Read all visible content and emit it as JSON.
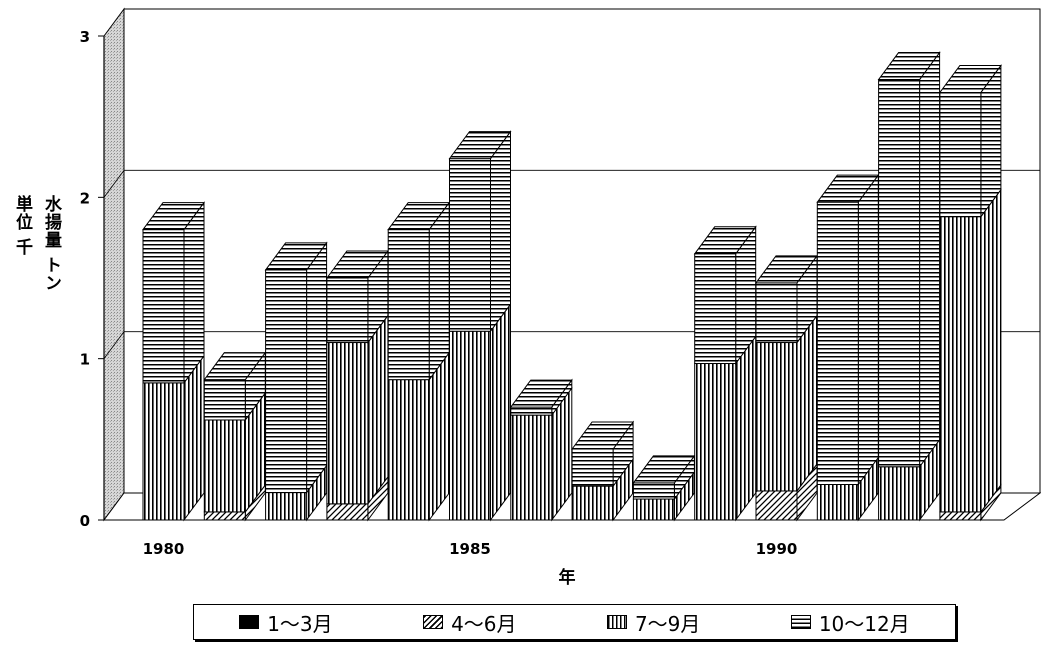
{
  "chart_data": {
    "type": "bar",
    "stacked": true,
    "three_d": true,
    "title": "",
    "xlabel": "年",
    "ylabel_lines": [
      "水揚量 トン",
      "単位 千"
    ],
    "ylim": [
      0,
      3
    ],
    "yticks": [
      "0",
      "1",
      "2",
      "3"
    ],
    "xtick_labels": [
      {
        "year": 1980,
        "label": "1980"
      },
      {
        "year": 1985,
        "label": "1985"
      },
      {
        "year": 1990,
        "label": "1990"
      }
    ],
    "categories": [
      1980,
      1981,
      1982,
      1983,
      1984,
      1985,
      1986,
      1987,
      1988,
      1989,
      1990,
      1991,
      1992,
      1993
    ],
    "series": [
      {
        "name": "1～3月",
        "values": [
          0,
          0,
          0,
          0,
          0,
          0,
          0,
          0,
          0,
          0,
          0,
          0,
          0,
          0
        ]
      },
      {
        "name": "4～6月",
        "values": [
          0,
          0.05,
          0,
          0.1,
          0,
          0,
          0,
          0,
          0,
          0,
          0.18,
          0,
          0,
          0.05
        ]
      },
      {
        "name": "7～9月",
        "values": [
          0.85,
          0.57,
          0.17,
          1.0,
          0.87,
          1.17,
          0.65,
          0.21,
          0.13,
          0.97,
          0.92,
          0.22,
          0.33,
          1.83
        ]
      },
      {
        "name": "10～12月",
        "values": [
          0.95,
          0.25,
          1.38,
          0.4,
          0.93,
          1.07,
          0.05,
          0.23,
          0.1,
          0.68,
          0.37,
          1.75,
          2.4,
          0.77
        ]
      }
    ],
    "grid": true,
    "legend_position": "bottom"
  }
}
